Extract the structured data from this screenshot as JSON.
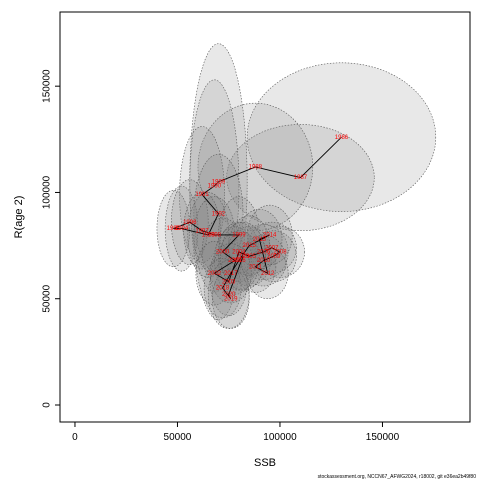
{
  "chart_data": {
    "type": "scatter",
    "x_label": "SSB",
    "y_label": "R(age 2)",
    "footnote": "stockassessment.org, NCCN67_AFWG2024, r18002, git e36ea2b49f80",
    "xlim": [
      -7300,
      192700
    ],
    "ylim": [
      -8000,
      184900
    ],
    "xticks": [
      0,
      50000,
      100000,
      150000
    ],
    "yticks": [
      0,
      50000,
      100000,
      150000
    ],
    "point_color": "#ff0000",
    "ellipse_color": "#808080",
    "series": [
      {
        "name": "R(age 2)",
        "point_labels": [
          "1986",
          "1987",
          "1988",
          "1989",
          "1990",
          "1991",
          "1992",
          "1993",
          "1994",
          "1995",
          "1996",
          "1997",
          "1998",
          "1999",
          "2000",
          "2001",
          "2002",
          "2003",
          "2004",
          "2005",
          "2006",
          "2007",
          "2008",
          "2009",
          "2010",
          "2011",
          "2012",
          "2013",
          "2014",
          "2015",
          "2016",
          "2017",
          "2018",
          "2019",
          "2020",
          "2021"
        ],
        "x": [
          130000,
          110000,
          88000,
          70000,
          68000,
          62000,
          70000,
          65000,
          52000,
          48000,
          56000,
          62000,
          68000,
          80000,
          72000,
          78000,
          68000,
          75000,
          80000,
          85000,
          92000,
          96000,
          100000,
          97000,
          92000,
          88000,
          94000,
          90000,
          95000,
          85000,
          80000,
          76000,
          72000,
          76000,
          75000,
          82000
        ],
        "values": [
          126000,
          107000,
          112000,
          105000,
          103000,
          99000,
          90000,
          80000,
          83000,
          83000,
          86000,
          82000,
          80000,
          80000,
          72000,
          68000,
          62000,
          58000,
          72000,
          70000,
          72000,
          74000,
          72000,
          70000,
          68000,
          65000,
          62000,
          78000,
          80000,
          75000,
          68000,
          62000,
          55000,
          50000,
          52000,
          70000
        ],
        "x_err": [
          46000,
          36000,
          28000,
          14000,
          12000,
          11000,
          12000,
          10000,
          8000,
          8000,
          9000,
          9000,
          10000,
          10000,
          10000,
          10000,
          9000,
          9000,
          10000,
          11000,
          12000,
          12000,
          12000,
          11000,
          11000,
          10000,
          10000,
          11000,
          11000,
          10000,
          10000,
          10000,
          9000,
          9000,
          10000,
          11000
        ],
        "y_err": [
          35000,
          25000,
          30000,
          65000,
          50000,
          32000,
          28000,
          20000,
          20000,
          18000,
          20000,
          18000,
          18000,
          18000,
          16000,
          16000,
          15000,
          16000,
          14000,
          14000,
          13000,
          12000,
          12000,
          12000,
          12000,
          12000,
          12000,
          14000,
          14000,
          14000,
          14000,
          14000,
          14000,
          14000,
          16000,
          16000
        ]
      }
    ]
  }
}
